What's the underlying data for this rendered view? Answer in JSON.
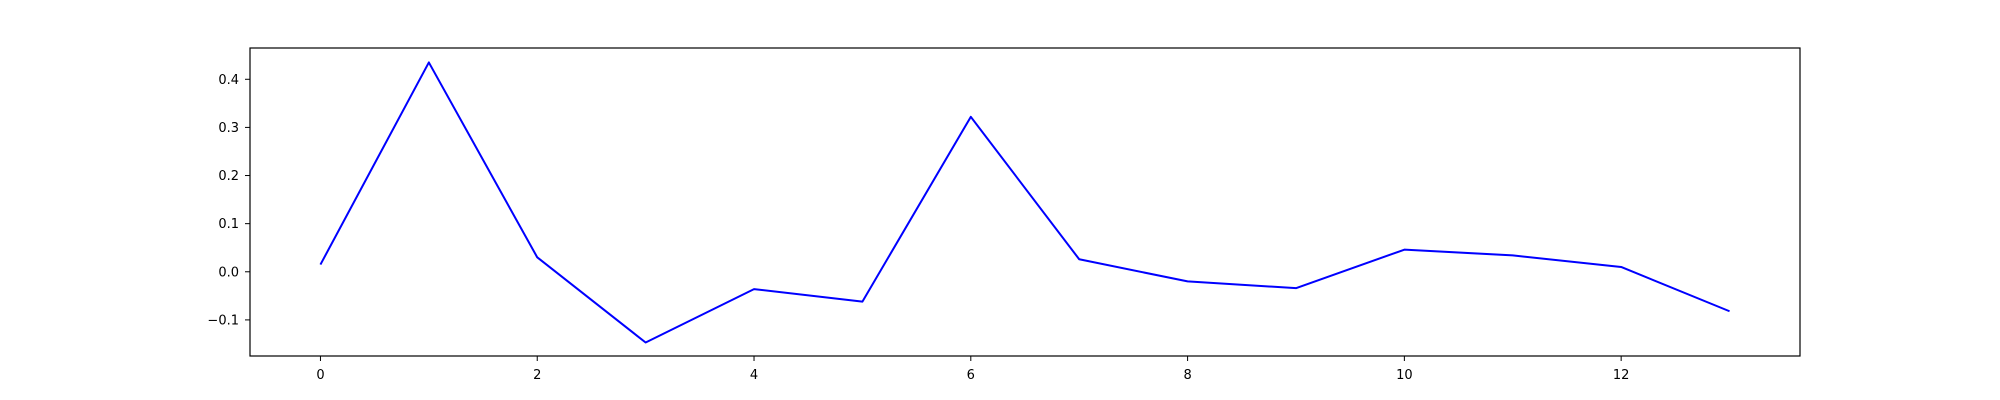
{
  "chart_data": {
    "type": "line",
    "title": "",
    "xlabel": "",
    "ylabel": "",
    "x": [
      0,
      1,
      2,
      3,
      4,
      5,
      6,
      7,
      8,
      9,
      10,
      11,
      12,
      13
    ],
    "series": [
      {
        "values": [
          0.015,
          0.435,
          0.03,
          -0.147,
          -0.036,
          -0.062,
          0.322,
          0.026,
          -0.02,
          -0.034,
          0.046,
          0.034,
          0.01,
          -0.082
        ],
        "color": "#0000ff"
      }
    ],
    "xlim": [
      -0.65,
      13.65
    ],
    "ylim": [
      -0.175,
      0.465
    ],
    "xticks": [
      0,
      2,
      4,
      6,
      8,
      10,
      12
    ],
    "xtick_labels": [
      "0",
      "2",
      "4",
      "6",
      "8",
      "10",
      "12"
    ],
    "yticks": [
      -0.1,
      0.0,
      0.1,
      0.2,
      0.3,
      0.4
    ],
    "ytick_labels": [
      "−0.1",
      "0.0",
      "0.1",
      "0.2",
      "0.3",
      "0.4"
    ],
    "grid": false,
    "legend": "none"
  }
}
